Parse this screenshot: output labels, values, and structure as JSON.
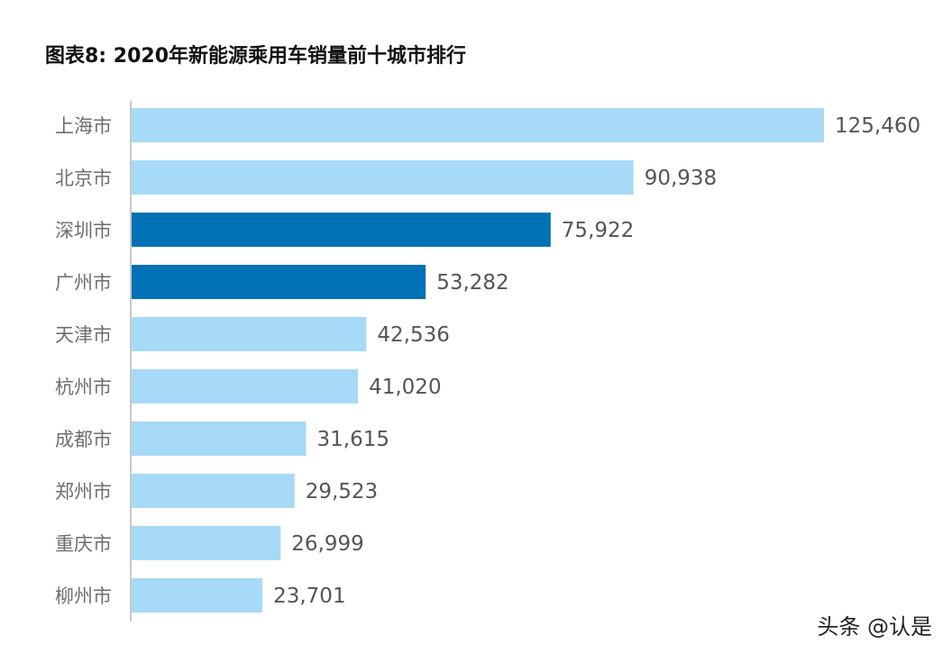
{
  "title": "图表8: 2020年新能源乘用车销量前十城市排行",
  "watermark": "头条 @认是",
  "colors": {
    "normal": "#a6daf6",
    "highlight": "#0071b5",
    "axis": "#c8c8c8"
  },
  "chart_data": {
    "type": "bar",
    "orientation": "horizontal",
    "title": "图表8: 2020年新能源乘用车销量前十城市排行",
    "categories": [
      "上海市",
      "北京市",
      "深圳市",
      "广州市",
      "天津市",
      "杭州市",
      "成都市",
      "郑州市",
      "重庆市",
      "柳州市"
    ],
    "values": [
      125460,
      90938,
      75922,
      53282,
      42536,
      41020,
      31615,
      29523,
      26999,
      23701
    ],
    "value_labels": [
      "125,460",
      "90,938",
      "75,922",
      "53,282",
      "42,536",
      "41,020",
      "31,615",
      "29,523",
      "26,999",
      "23,701"
    ],
    "highlighted": [
      "深圳市",
      "广州市"
    ],
    "xlabel": "",
    "ylabel": "",
    "xlim": [
      0,
      125460
    ],
    "grid": false
  }
}
